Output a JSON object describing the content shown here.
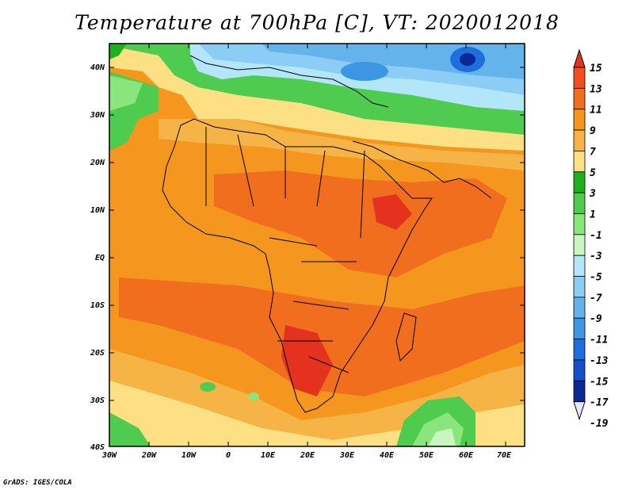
{
  "title": "Temperature at 700hPa [C], VT: 2020012018",
  "credit": "GrADS: IGES/COLA",
  "map": {
    "lat_labels": [
      "40N",
      "30N",
      "20N",
      "10N",
      "EQ",
      "10S",
      "20S",
      "30S",
      "40S"
    ],
    "lon_labels": [
      "30W",
      "20W",
      "10W",
      "0",
      "10E",
      "20E",
      "30E",
      "40E",
      "50E",
      "60E",
      "70E"
    ]
  },
  "colorbar": {
    "labels": [
      "15",
      "13",
      "11",
      "9",
      "7",
      "5",
      "3",
      "1",
      "-1",
      "-3",
      "-5",
      "-7",
      "-9",
      "-11",
      "-13",
      "-15",
      "-17",
      "-19"
    ],
    "colors": [
      "#e4321e",
      "#f0501e",
      "#f06e1e",
      "#f5961e",
      "#f7b446",
      "#fde084",
      "#1fb01e",
      "#4fcc4f",
      "#8ae67c",
      "#c8f5c0",
      "#b4e6fa",
      "#8ccdf5",
      "#64b4eb",
      "#3c96e1",
      "#1e6edc",
      "#1450c8",
      "#0a2896",
      "#e6e6ff"
    ]
  }
}
